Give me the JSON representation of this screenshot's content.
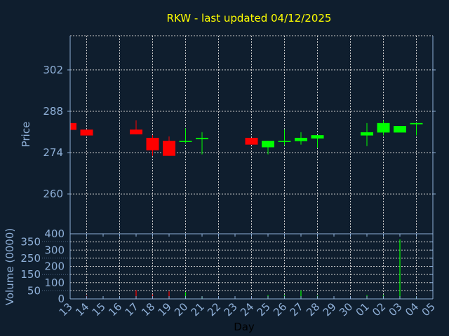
{
  "chart_data": {
    "type": "candlestick",
    "title": "RKW - last updated 04/12/2025",
    "xlabel": "Day",
    "ylabel_price": "Price",
    "ylabel_volume": "Volume (0000)",
    "x_tick_labels": [
      "13",
      "14",
      "15",
      "16",
      "17",
      "18",
      "19",
      "20",
      "21",
      "22",
      "23",
      "24",
      "25",
      "26",
      "27",
      "28",
      "29",
      "30",
      "01",
      "02",
      "03",
      "04",
      "05"
    ],
    "price_ticks": [
      260,
      274,
      288,
      302
    ],
    "price_ylim": [
      246.5,
      313.6
    ],
    "volume_ticks": [
      0,
      50,
      100,
      150,
      200,
      250,
      300,
      350,
      400
    ],
    "volume_ylim": [
      0,
      400
    ],
    "grid": true,
    "colors": {
      "background": "#0f1e2e",
      "up": "#00ff00",
      "down": "#ff0000",
      "title": "#ffff00",
      "axis": "#8fb0d8",
      "grid": "#c8c8c8"
    },
    "candles": [
      {
        "day": "13",
        "open": 284.0,
        "high": 284.0,
        "low": 281.7,
        "close": 281.7,
        "volume": 0
      },
      {
        "day": "14",
        "open": 281.8,
        "high": 281.8,
        "low": 279.8,
        "close": 279.8,
        "volume": 20
      },
      {
        "day": "17",
        "open": 281.8,
        "high": 284.9,
        "low": 280.2,
        "close": 280.2,
        "volume": 54
      },
      {
        "day": "18",
        "open": 279.0,
        "high": 279.9,
        "low": 272.9,
        "close": 274.8,
        "volume": 27
      },
      {
        "day": "19",
        "open": 278.0,
        "high": 279.5,
        "low": 272.9,
        "close": 272.9,
        "volume": 46
      },
      {
        "day": "20",
        "open": 277.6,
        "high": 282.2,
        "low": 277.2,
        "close": 278.0,
        "volume": 41
      },
      {
        "day": "21",
        "open": 278.6,
        "high": 280.9,
        "low": 273.4,
        "close": 279.0,
        "volume": 14
      },
      {
        "day": "24",
        "open": 279.0,
        "high": 279.0,
        "low": 276.7,
        "close": 276.7,
        "volume": 10
      },
      {
        "day": "25",
        "open": 275.8,
        "high": 278.0,
        "low": 273.4,
        "close": 278.0,
        "volume": 23
      },
      {
        "day": "26",
        "open": 277.6,
        "high": 281.8,
        "low": 276.5,
        "close": 278.0,
        "volume": 23
      },
      {
        "day": "27",
        "open": 277.9,
        "high": 280.9,
        "low": 276.7,
        "close": 279.0,
        "volume": 52
      },
      {
        "day": "28",
        "open": 278.8,
        "high": 279.9,
        "low": 275.7,
        "close": 279.9,
        "volume": 20
      },
      {
        "day": "01",
        "open": 279.8,
        "high": 284.0,
        "low": 276.2,
        "close": 280.9,
        "volume": 23
      },
      {
        "day": "02",
        "open": 280.8,
        "high": 284.9,
        "low": 279.8,
        "close": 284.0,
        "volume": 23
      },
      {
        "day": "03",
        "open": 280.8,
        "high": 283.0,
        "low": 280.8,
        "close": 283.0,
        "volume": 365
      },
      {
        "day": "04",
        "open": 283.6,
        "high": 284.0,
        "low": 279.8,
        "close": 284.0,
        "volume": 12
      }
    ]
  }
}
